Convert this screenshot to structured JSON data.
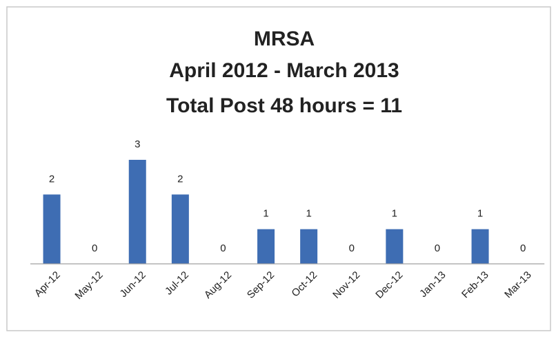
{
  "chart_data": {
    "type": "bar",
    "title": [
      "MRSA",
      "April 2012 - March 2013",
      "Total Post 48 hours = 11"
    ],
    "categories": [
      "Apr-12",
      "May-12",
      "Jun-12",
      "Jul-12",
      "Aug-12",
      "Sep-12",
      "Oct-12",
      "Nov-12",
      "Dec-12",
      "Jan-13",
      "Feb-13",
      "Mar-13"
    ],
    "values": [
      2,
      0,
      3,
      2,
      0,
      1,
      1,
      0,
      1,
      0,
      1,
      0
    ],
    "color": "#3e6db3",
    "ylim": [
      0,
      3
    ]
  }
}
